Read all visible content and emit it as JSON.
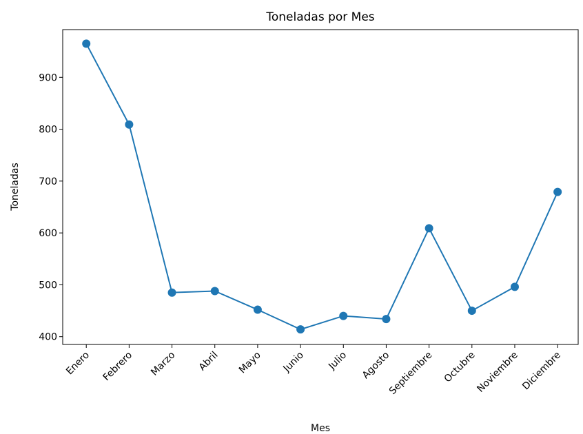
{
  "chart_data": {
    "type": "line",
    "title": "Toneladas por Mes",
    "xlabel": "Mes",
    "ylabel": "Toneladas",
    "categories": [
      "Enero",
      "Febrero",
      "Marzo",
      "Abril",
      "Mayo",
      "Junio",
      "Julio",
      "Agosto",
      "Septiembre",
      "Octubre",
      "Noviembre",
      "Diciembre"
    ],
    "values": [
      965,
      809,
      485,
      488,
      452,
      414,
      440,
      434,
      609,
      450,
      496,
      679
    ],
    "color": "#1f77b4",
    "ylim": [
      385,
      992
    ],
    "yticks": [
      400,
      500,
      600,
      700,
      800,
      900
    ],
    "grid": false
  }
}
